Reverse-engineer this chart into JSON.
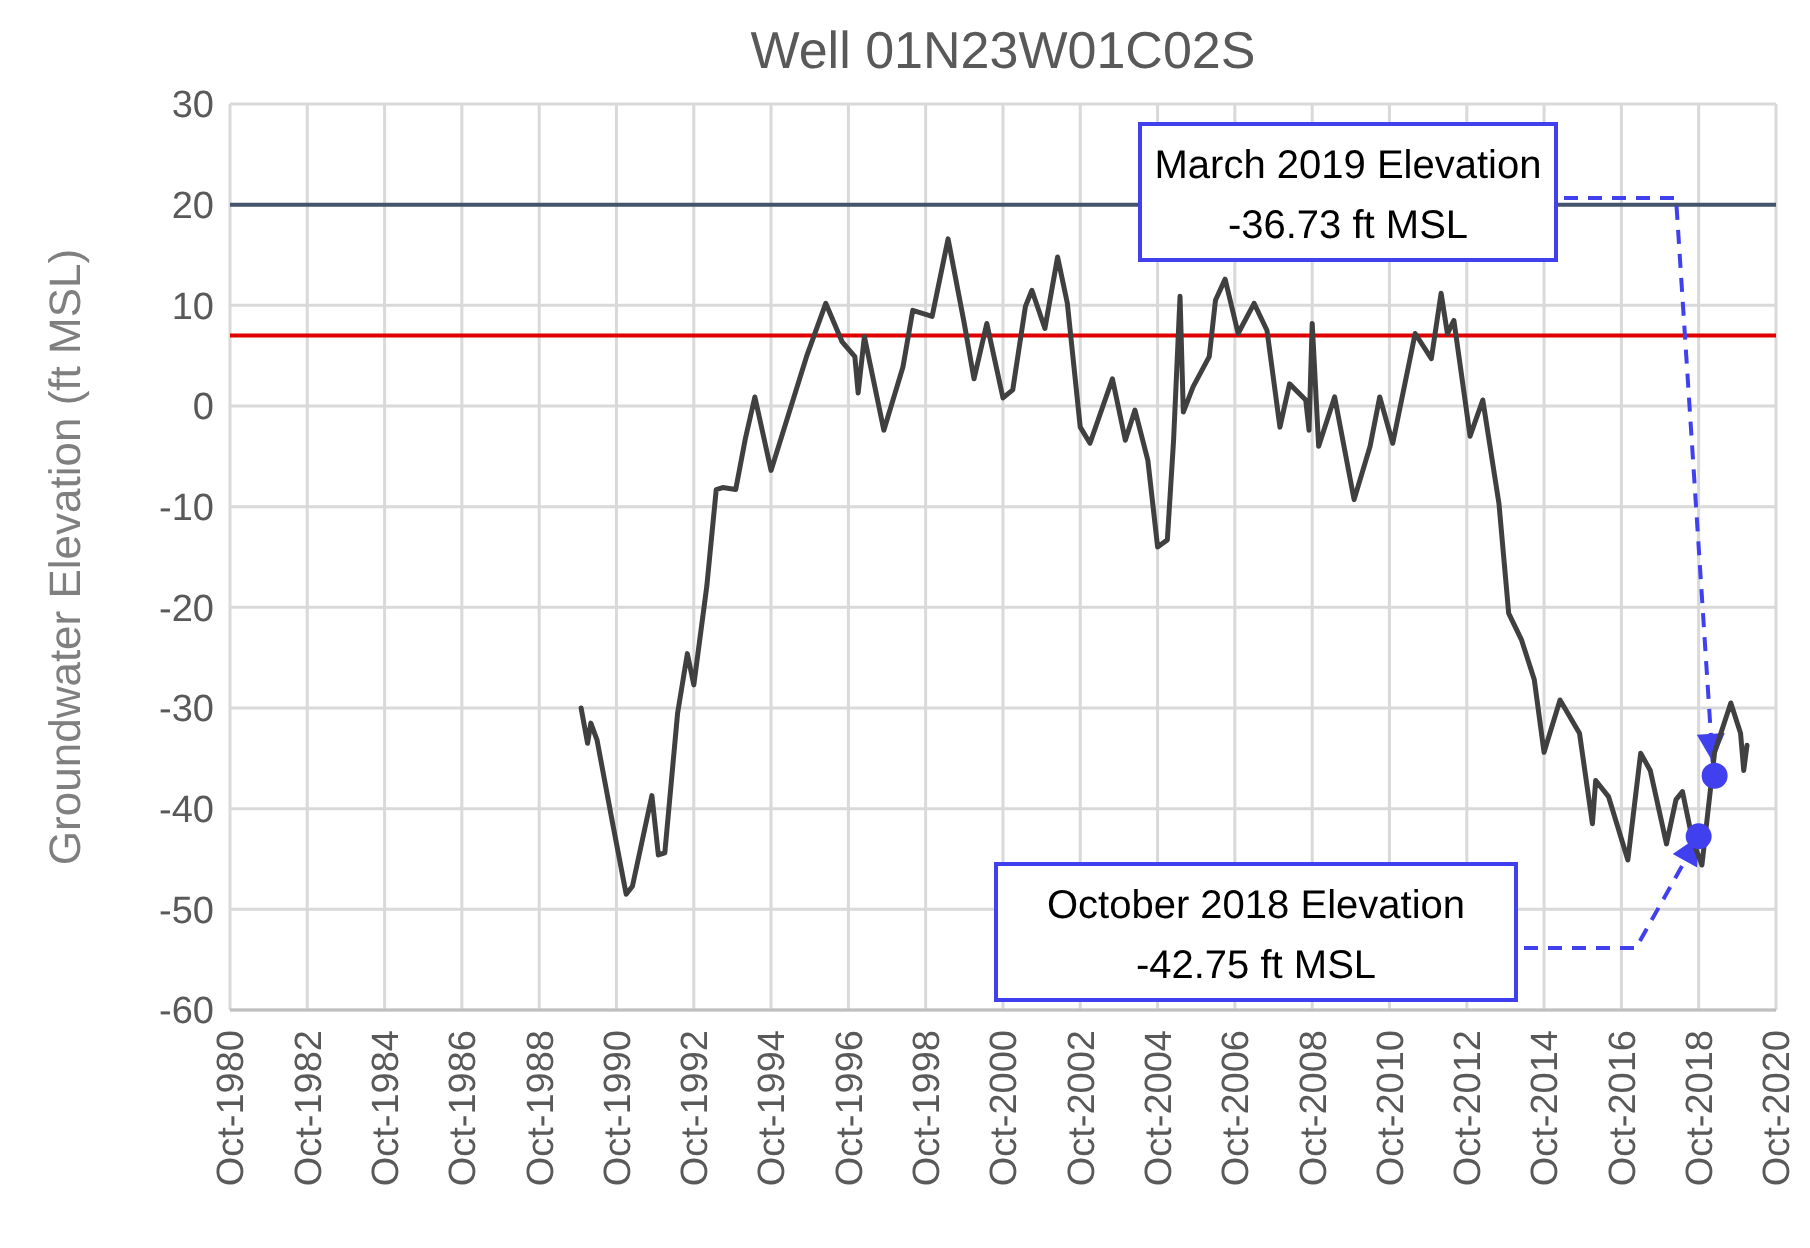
{
  "chart_data": {
    "type": "line",
    "title": "Well 01N23W01C02S",
    "ylabel": "Groundwater Elevation (ft MSL)",
    "xlim": [
      "1980-10",
      "2020-10"
    ],
    "xticks": [
      {
        "value": "1980-10",
        "label": "Oct-1980"
      },
      {
        "value": "1982-10",
        "label": "Oct-1982"
      },
      {
        "value": "1984-10",
        "label": "Oct-1984"
      },
      {
        "value": "1986-10",
        "label": "Oct-1986"
      },
      {
        "value": "1988-10",
        "label": "Oct-1988"
      },
      {
        "value": "1990-10",
        "label": "Oct-1990"
      },
      {
        "value": "1992-10",
        "label": "Oct-1992"
      },
      {
        "value": "1994-10",
        "label": "Oct-1994"
      },
      {
        "value": "1996-10",
        "label": "Oct-1996"
      },
      {
        "value": "1998-10",
        "label": "Oct-1998"
      },
      {
        "value": "2000-10",
        "label": "Oct-2000"
      },
      {
        "value": "2002-10",
        "label": "Oct-2002"
      },
      {
        "value": "2004-10",
        "label": "Oct-2004"
      },
      {
        "value": "2006-10",
        "label": "Oct-2006"
      },
      {
        "value": "2008-10",
        "label": "Oct-2008"
      },
      {
        "value": "2010-10",
        "label": "Oct-2010"
      },
      {
        "value": "2012-10",
        "label": "Oct-2012"
      },
      {
        "value": "2014-10",
        "label": "Oct-2014"
      },
      {
        "value": "2016-10",
        "label": "Oct-2016"
      },
      {
        "value": "2018-10",
        "label": "Oct-2018"
      },
      {
        "value": "2020-10",
        "label": "Oct-2020"
      }
    ],
    "ylim": [
      -60,
      30
    ],
    "yticks": [
      -60,
      -50,
      -40,
      -30,
      -20,
      -10,
      0,
      10,
      20,
      30
    ],
    "grid": true,
    "series": [
      {
        "color": "#404040",
        "x": [
          "1989-11",
          "1990-01",
          "1990-02",
          "1990-04",
          "1990-09",
          "1991-01",
          "1991-03",
          "1991-09",
          "1991-11",
          "1992-01",
          "1992-05",
          "1992-08",
          "1992-10",
          "1993-02",
          "1993-05",
          "1993-07",
          "1993-11",
          "1994-02",
          "1994-05",
          "1994-10",
          "1995-09",
          "1996-03",
          "1996-08",
          "1996-12",
          "1997-01",
          "1997-03",
          "1997-09",
          "1998-03",
          "1998-06",
          "1998-12",
          "1999-05",
          "1999-10",
          "2000-01",
          "2000-05",
          "2000-10",
          "2001-01",
          "2001-05",
          "2001-07",
          "2001-11",
          "2002-03",
          "2002-06",
          "2002-10",
          "2003-01",
          "2003-08",
          "2003-12",
          "2004-03",
          "2004-07",
          "2004-10",
          "2005-01",
          "2005-03",
          "2005-05",
          "2005-06",
          "2005-09",
          "2006-02",
          "2006-04",
          "2006-07",
          "2006-11",
          "2007-04",
          "2007-08",
          "2007-12",
          "2008-03",
          "2008-08",
          "2008-09",
          "2008-10",
          "2008-12",
          "2009-05",
          "2009-11",
          "2010-04",
          "2010-07",
          "2010-11",
          "2011-06",
          "2011-11",
          "2012-02",
          "2012-04",
          "2012-06",
          "2012-11",
          "2013-03",
          "2013-08",
          "2013-11",
          "2014-03",
          "2014-07",
          "2014-10",
          "2015-03",
          "2015-09",
          "2016-01",
          "2016-02",
          "2016-06",
          "2016-12",
          "2017-04",
          "2017-07",
          "2017-12",
          "2018-03",
          "2018-05",
          "2018-08",
          "2018-11",
          "2019-03",
          "2019-08",
          "2019-11",
          "2019-12",
          "2020-01"
        ],
        "values": [
          -30,
          -33.5,
          -31.5,
          -33.2,
          -41.8,
          -48.5,
          -47.7,
          -38.7,
          -44.6,
          -44.4,
          -30.5,
          -24.6,
          -27.7,
          -17.9,
          -8.3,
          -8.1,
          -8.3,
          -3.2,
          0.9,
          -6.4,
          4.9,
          10.2,
          6.4,
          4.9,
          1.3,
          6.9,
          -2.4,
          3.9,
          9.5,
          8.9,
          16.6,
          8.2,
          2.7,
          8.2,
          0.8,
          1.6,
          9.9,
          11.5,
          7.7,
          14.8,
          10.2,
          -2.1,
          -3.7,
          2.7,
          -3.4,
          -0.4,
          -5.4,
          -14,
          -13.3,
          -3.4,
          10.9,
          -0.6,
          1.9,
          4.9,
          10.5,
          12.6,
          7.2,
          10.2,
          7.5,
          -2.1,
          2.2,
          0.6,
          -2.4,
          8.2,
          -4,
          0.9,
          -9.3,
          -4,
          0.9,
          -3.7,
          7.2,
          4.7,
          11.2,
          7.2,
          8.5,
          -3,
          0.6,
          -9.7,
          -20.6,
          -23.2,
          -27.2,
          -34.4,
          -29.2,
          -32.5,
          -41.5,
          -37.2,
          -38.8,
          -45.1,
          -34.5,
          -36.2,
          -43.5,
          -39.1,
          -38.3,
          -43,
          -45.6,
          -34.4,
          -29.5,
          -32.5,
          -36.2,
          -33.7
        ]
      },
      {
        "type": "scatter",
        "color": "#4040ee",
        "marker": "circle",
        "x": [
          "2018-10",
          "2019-03"
        ],
        "values": [
          -42.75,
          -36.73
        ]
      }
    ],
    "ref_lines": [
      {
        "axis": "y",
        "value": 20,
        "color": "#44546a"
      },
      {
        "axis": "y",
        "value": 7,
        "color": "#e00000"
      }
    ],
    "annotations": [
      {
        "text": "March 2019 Elevation\n-36.73 ft MSL",
        "x": "2019-03",
        "y": -36.73
      },
      "October 2018 Elevation\n-42.75 ft MSL"
    ]
  }
}
